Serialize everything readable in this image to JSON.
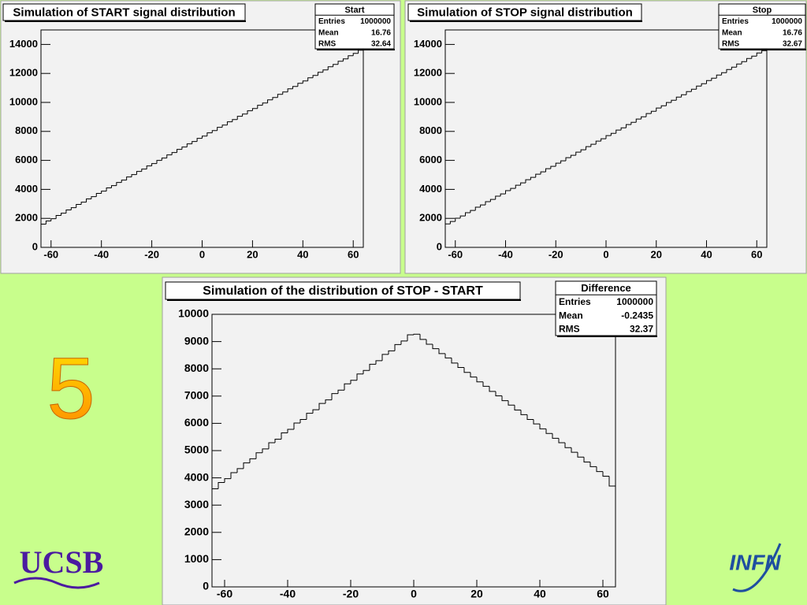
{
  "chart_data": [
    {
      "type": "histogram",
      "title": "Simulation of START signal distribution",
      "stats": {
        "name": "Start",
        "rows": [
          [
            "Entries",
            "1000000"
          ],
          [
            "Mean",
            "16.76"
          ],
          [
            "RMS",
            "32.64"
          ]
        ]
      },
      "bins": [
        -64,
        -62,
        -60,
        -58,
        -56,
        -54,
        -52,
        -50,
        -48,
        -46,
        -44,
        -42,
        -40,
        -38,
        -36,
        -34,
        -32,
        -30,
        -28,
        -26,
        -24,
        -22,
        -20,
        -18,
        -16,
        -14,
        -12,
        -10,
        -8,
        -6,
        -4,
        -2,
        0,
        2,
        4,
        6,
        8,
        10,
        12,
        14,
        16,
        18,
        20,
        22,
        24,
        26,
        28,
        30,
        32,
        34,
        36,
        38,
        40,
        42,
        44,
        46,
        48,
        50,
        52,
        54,
        56,
        58,
        60,
        62,
        64
      ],
      "values": [
        1600,
        1820,
        1980,
        2200,
        2360,
        2580,
        2740,
        2960,
        3120,
        3340,
        3500,
        3720,
        3880,
        4100,
        4260,
        4480,
        4640,
        4860,
        5020,
        5240,
        5400,
        5620,
        5780,
        6000,
        6160,
        6380,
        6540,
        6760,
        6920,
        7140,
        7300,
        7520,
        7680,
        7900,
        8060,
        8280,
        8440,
        8660,
        8820,
        9040,
        9200,
        9420,
        9580,
        9800,
        9960,
        10180,
        10340,
        10560,
        10720,
        10940,
        11100,
        11320,
        11480,
        11700,
        11860,
        12080,
        12240,
        12460,
        12620,
        12840,
        13000,
        13220,
        13380,
        13600
      ],
      "color": "#000000",
      "xlim": [
        -64,
        64
      ],
      "xticks": [
        -60,
        -40,
        -20,
        0,
        20,
        40,
        60
      ],
      "ylim": [
        0,
        15000
      ],
      "yticks": [
        0,
        2000,
        4000,
        6000,
        8000,
        10000,
        12000,
        14000
      ]
    },
    {
      "type": "histogram",
      "title": "Simulation of STOP signal distribution",
      "stats": {
        "name": "Stop",
        "rows": [
          [
            "Entries",
            "1000000"
          ],
          [
            "Mean",
            "16.76"
          ],
          [
            "RMS",
            "32.67"
          ]
        ]
      },
      "bins": [
        -64,
        -62,
        -60,
        -58,
        -56,
        -54,
        -52,
        -50,
        -48,
        -46,
        -44,
        -42,
        -40,
        -38,
        -36,
        -34,
        -32,
        -30,
        -28,
        -26,
        -24,
        -22,
        -20,
        -18,
        -16,
        -14,
        -12,
        -10,
        -8,
        -6,
        -4,
        -2,
        0,
        2,
        4,
        6,
        8,
        10,
        12,
        14,
        16,
        18,
        20,
        22,
        24,
        26,
        28,
        30,
        32,
        34,
        36,
        38,
        40,
        42,
        44,
        46,
        48,
        50,
        52,
        54,
        56,
        58,
        60,
        62,
        64
      ],
      "values": [
        1620,
        1790,
        2010,
        2170,
        2390,
        2550,
        2770,
        2930,
        3150,
        3310,
        3530,
        3690,
        3910,
        4070,
        4290,
        4450,
        4670,
        4830,
        5050,
        5210,
        5430,
        5590,
        5810,
        5970,
        6190,
        6350,
        6570,
        6730,
        6950,
        7110,
        7330,
        7490,
        7710,
        7870,
        8090,
        8250,
        8470,
        8630,
        8850,
        9010,
        9230,
        9390,
        9610,
        9770,
        9990,
        10150,
        10370,
        10530,
        10750,
        10910,
        11130,
        11290,
        11510,
        11670,
        11890,
        12050,
        12270,
        12430,
        12650,
        12810,
        13030,
        13190,
        13410,
        13570
      ],
      "color": "#000000",
      "xlim": [
        -64,
        64
      ],
      "xticks": [
        -60,
        -40,
        -20,
        0,
        20,
        40,
        60
      ],
      "ylim": [
        0,
        15000
      ],
      "yticks": [
        0,
        2000,
        4000,
        6000,
        8000,
        10000,
        12000,
        14000
      ]
    },
    {
      "type": "histogram",
      "title": "Simulation of the distribution of STOP - START",
      "stats": {
        "name": "Difference",
        "rows": [
          [
            "Entries",
            "1000000"
          ],
          [
            "Mean",
            "-0.2435"
          ],
          [
            "RMS",
            "32.37"
          ]
        ]
      },
      "bins": [
        -64,
        -62,
        -60,
        -58,
        -56,
        -54,
        -52,
        -50,
        -48,
        -46,
        -44,
        -42,
        -40,
        -38,
        -36,
        -34,
        -32,
        -30,
        -28,
        -26,
        -24,
        -22,
        -20,
        -18,
        -16,
        -14,
        -12,
        -10,
        -8,
        -6,
        -4,
        -2,
        0,
        2,
        4,
        6,
        8,
        10,
        12,
        14,
        16,
        18,
        20,
        22,
        24,
        26,
        28,
        30,
        32,
        34,
        36,
        38,
        40,
        42,
        44,
        46,
        48,
        50,
        52,
        54,
        56,
        58,
        60,
        62,
        64
      ],
      "values": [
        3600,
        3830,
        3970,
        4190,
        4340,
        4550,
        4700,
        4920,
        5060,
        5290,
        5420,
        5650,
        5780,
        6010,
        6140,
        6370,
        6500,
        6730,
        6860,
        7090,
        7220,
        7450,
        7580,
        7810,
        7940,
        8170,
        8300,
        8530,
        8660,
        8890,
        9020,
        9250,
        9270,
        9080,
        8900,
        8740,
        8560,
        8400,
        8210,
        8050,
        7870,
        7700,
        7520,
        7360,
        7170,
        7010,
        6830,
        6670,
        6490,
        6320,
        6140,
        5980,
        5800,
        5630,
        5450,
        5290,
        5110,
        4940,
        4760,
        4580,
        4410,
        4230,
        4060,
        3700
      ],
      "color": "#000000",
      "xlim": [
        -64,
        64
      ],
      "xticks": [
        -60,
        -40,
        -20,
        0,
        20,
        40,
        60
      ],
      "ylim": [
        0,
        10000
      ],
      "yticks": [
        0,
        1000,
        2000,
        3000,
        4000,
        5000,
        6000,
        7000,
        8000,
        9000,
        10000
      ]
    }
  ],
  "slide": {
    "number": "5",
    "logos": [
      "UCSB",
      "INFN"
    ]
  }
}
